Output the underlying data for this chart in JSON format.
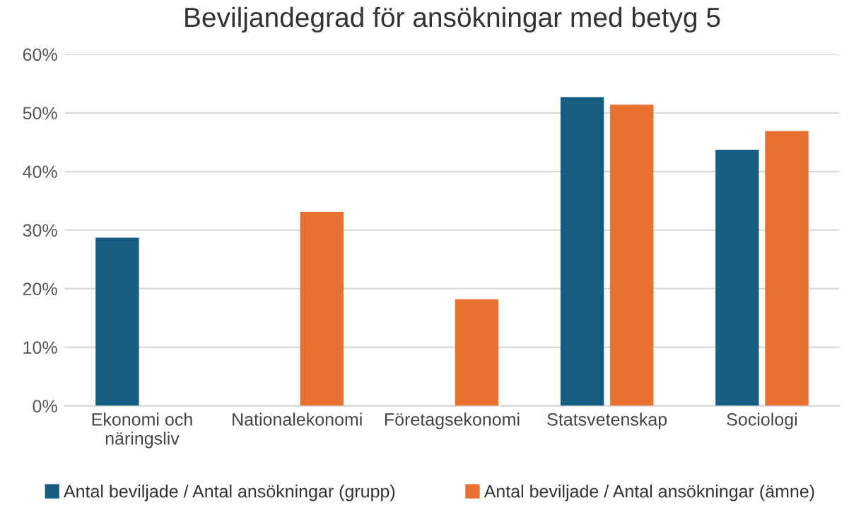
{
  "chart_data": {
    "type": "bar",
    "title": "Beviljandegrad för ansökningar med betyg 5",
    "categories": [
      "Ekonomi och\nnäringsliv",
      "Nationalekonomi",
      "Företagsekonomi",
      "Statsvetenskap",
      "Sociologi"
    ],
    "series": [
      {
        "name": "Antal beviljade / Antal ansökningar (grupp)",
        "color": "#155e81",
        "values": [
          28.7,
          null,
          null,
          52.7,
          43.7
        ]
      },
      {
        "name": "Antal beviljade / Antal ansökningar (ämne)",
        "color": "#e87030",
        "values": [
          null,
          33.1,
          18.2,
          51.4,
          46.9
        ]
      }
    ],
    "ylim": [
      0,
      60
    ],
    "yticks": [
      {
        "value": 0,
        "label": "0%"
      },
      {
        "value": 10,
        "label": "10%"
      },
      {
        "value": 20,
        "label": "20%"
      },
      {
        "value": 30,
        "label": "30%"
      },
      {
        "value": 40,
        "label": "40%"
      },
      {
        "value": 50,
        "label": "50%"
      },
      {
        "value": 60,
        "label": "60%"
      }
    ],
    "grid": "y",
    "legend": "bottom"
  }
}
